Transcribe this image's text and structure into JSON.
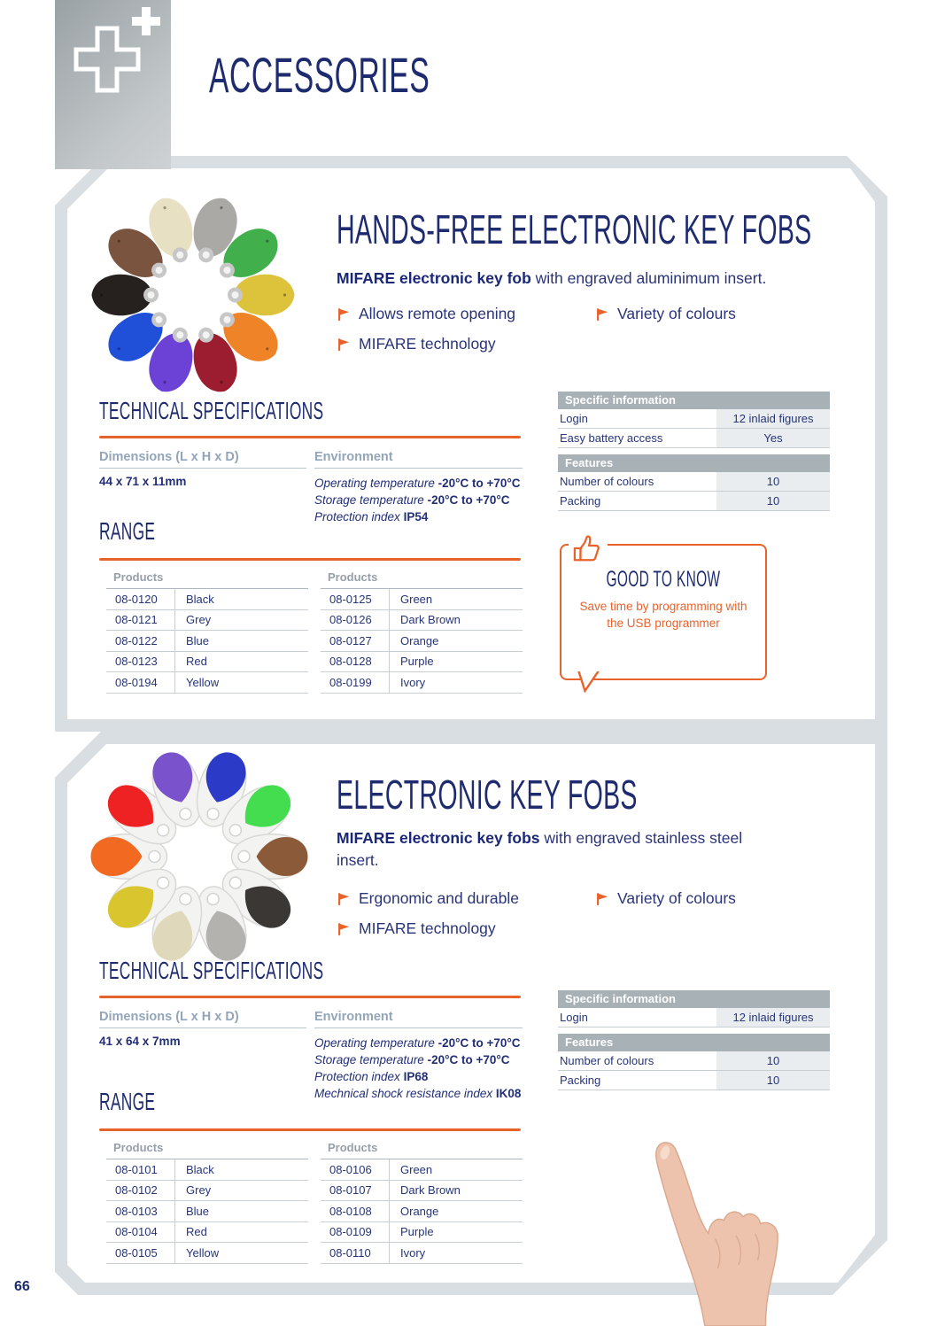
{
  "page": {
    "title": "ACCESSORIES",
    "number": "66"
  },
  "colors": {
    "navy": "#1e2b6f",
    "orange": "#e8632c",
    "card_border": "#d8dee1"
  },
  "sections": [
    {
      "title": "HANDS-FREE ELECTRONIC KEY FOBS",
      "intro_bold": "MIFARE electronic key fob",
      "intro_rest": " with engraved aluminimum insert.",
      "bullets": [
        "Allows remote opening",
        "Variety of colours",
        "MIFARE technology"
      ],
      "tech": {
        "heading": "TECHNICAL SPECIFICATIONS",
        "dimensions_label": "Dimensions (L x H x D)",
        "dimensions_value": "44 x 71 x 11mm",
        "environment_label": "Environment",
        "environment_rows": [
          {
            "label": "Operating temperature",
            "value": "-20°C to +70°C"
          },
          {
            "label": "Storage temperature",
            "value": "-20°C to +70°C"
          },
          {
            "label": "Protection index",
            "value": "IP54"
          }
        ]
      },
      "spec_table": {
        "groups": [
          {
            "header": "Specific information",
            "rows": [
              {
                "label": "Login",
                "value": "12 inlaid figures"
              },
              {
                "label": "Easy battery access",
                "value": "Yes"
              }
            ]
          },
          {
            "header": "Features",
            "rows": [
              {
                "label": "Number of colours",
                "value": "10"
              },
              {
                "label": "Packing",
                "value": "10"
              }
            ]
          }
        ]
      },
      "range_heading": "RANGE",
      "products_header": "Products",
      "product_tables": [
        {
          "rows": [
            {
              "code": "08-0120",
              "colour": "Black"
            },
            {
              "code": "08-0121",
              "colour": "Grey"
            },
            {
              "code": "08-0122",
              "colour": "Blue"
            },
            {
              "code": "08-0123",
              "colour": "Red"
            },
            {
              "code": "08-0194",
              "colour": "Yellow"
            }
          ]
        },
        {
          "rows": [
            {
              "code": "08-0125",
              "colour": "Green"
            },
            {
              "code": "08-0126",
              "colour": "Dark Brown"
            },
            {
              "code": "08-0127",
              "colour": "Orange"
            },
            {
              "code": "08-0128",
              "colour": "Purple"
            },
            {
              "code": "08-0199",
              "colour": "Ivory"
            }
          ]
        }
      ],
      "good_to_know": {
        "heading": "GOOD TO KNOW",
        "text": "Save time by programming with the USB programmer"
      },
      "fob_colors": [
        "#26211f",
        "#7b5440",
        "#e8e0c2",
        "#aaa9a5",
        "#41b04c",
        "#ddc23c",
        "#ef8327",
        "#9c1c30",
        "#6b41d6",
        "#2050d8"
      ]
    },
    {
      "title": "ELECTRONIC KEY FOBS",
      "intro_bold": "MIFARE electronic key fobs",
      "intro_rest": " with engraved stainless steel insert.",
      "bullets": [
        "Ergonomic and durable",
        "Variety of colours",
        "MIFARE technology"
      ],
      "tech": {
        "heading": "TECHNICAL SPECIFICATIONS",
        "dimensions_label": "Dimensions (L x H x D)",
        "dimensions_value": "41 x 64 x 7mm",
        "environment_label": "Environment",
        "environment_rows": [
          {
            "label": "Operating temperature",
            "value": "-20°C to +70°C"
          },
          {
            "label": "Storage temperature",
            "value": "-20°C to +70°C"
          },
          {
            "label": "Protection index",
            "value": "IP68"
          },
          {
            "label": "Mechnical shock resistance index",
            "value": "IK08"
          }
        ]
      },
      "spec_table": {
        "groups": [
          {
            "header": "Specific information",
            "rows": [
              {
                "label": "Login",
                "value": "12 inlaid figures"
              }
            ]
          },
          {
            "header": "Features",
            "rows": [
              {
                "label": "Number of colours",
                "value": "10"
              },
              {
                "label": "Packing",
                "value": "10"
              }
            ]
          }
        ]
      },
      "range_heading": "RANGE",
      "products_header": "Products",
      "product_tables": [
        {
          "rows": [
            {
              "code": "08-0101",
              "colour": "Black"
            },
            {
              "code": "08-0102",
              "colour": "Grey"
            },
            {
              "code": "08-0103",
              "colour": "Blue"
            },
            {
              "code": "08-0104",
              "colour": "Red"
            },
            {
              "code": "08-0105",
              "colour": "Yellow"
            }
          ]
        },
        {
          "rows": [
            {
              "code": "08-0106",
              "colour": "Green"
            },
            {
              "code": "08-0107",
              "colour": "Dark Brown"
            },
            {
              "code": "08-0108",
              "colour": "Orange"
            },
            {
              "code": "08-0109",
              "colour": "Purple"
            },
            {
              "code": "08-0110",
              "colour": "Ivory"
            }
          ]
        }
      ],
      "fob_colors": [
        "#f26a22",
        "#ee2222",
        "#7a52cc",
        "#2b3bc8",
        "#43dd4f",
        "#8a5a39",
        "#3a3735",
        "#b3b2ae",
        "#dfd8ba",
        "#d9c62e"
      ]
    }
  ]
}
